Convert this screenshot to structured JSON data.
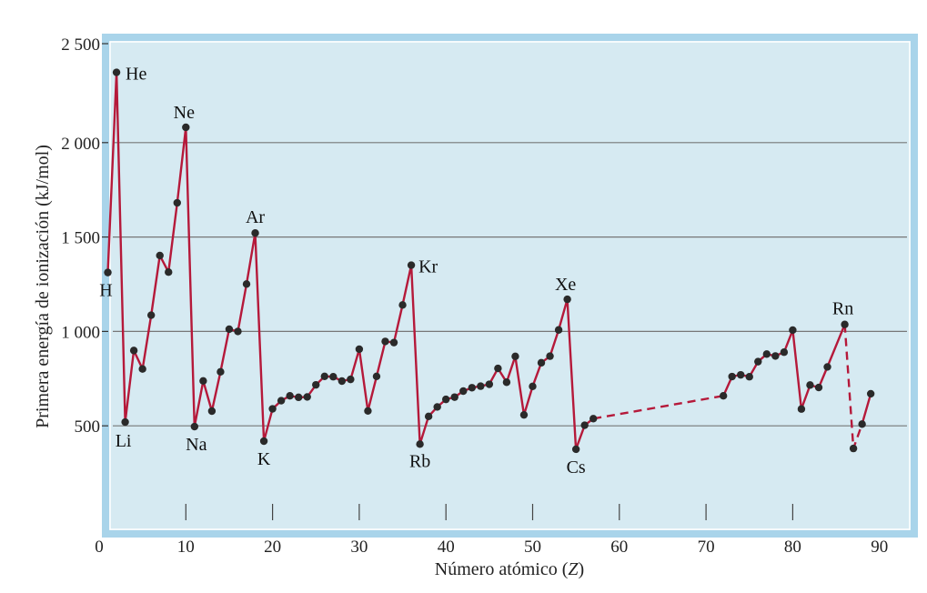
{
  "chart_data": {
    "type": "line",
    "title": "",
    "xlabel": "Número atómico (Z)",
    "xlabel_main": "Número atómico (",
    "xlabel_var": "Z",
    "xlabel_end": ")",
    "ylabel": "Primera energía de ionización (kJ/mol)",
    "xlim": [
      0,
      90
    ],
    "ylim": [
      0,
      2500
    ],
    "x_ticks": [
      0,
      10,
      20,
      30,
      40,
      50,
      60,
      70,
      80,
      90
    ],
    "x_tick_labels": [
      "0",
      "10",
      "20",
      "30",
      "40",
      "50",
      "60",
      "70",
      "80",
      "90"
    ],
    "y_ticks": [
      500,
      1000,
      1500,
      2000,
      2500
    ],
    "y_tick_labels": [
      "500",
      "1 000",
      "1 500",
      "2 000",
      "2 500"
    ],
    "grid": true,
    "colors": {
      "line": "#b5193a",
      "marker": "#2a2a2a",
      "plot_background": "#d6eaf2",
      "frame": "#a9d4ea",
      "gridline": "#777777"
    },
    "series": [
      {
        "segments": [
          {
            "style": "solid",
            "points": [
              [
                1,
                1312
              ],
              [
                2,
                2372
              ],
              [
                3,
                520
              ],
              [
                4,
                899
              ],
              [
                5,
                801
              ],
              [
                6,
                1086
              ],
              [
                7,
                1402
              ],
              [
                8,
                1314
              ],
              [
                9,
                1681
              ],
              [
                10,
                2081
              ],
              [
                11,
                496
              ],
              [
                12,
                738
              ],
              [
                13,
                578
              ],
              [
                14,
                786
              ],
              [
                15,
                1012
              ],
              [
                16,
                1000
              ],
              [
                17,
                1251
              ],
              [
                18,
                1521
              ],
              [
                19,
                419
              ],
              [
                20,
                590
              ],
              [
                21,
                633
              ],
              [
                22,
                659
              ],
              [
                23,
                651
              ],
              [
                24,
                653
              ],
              [
                25,
                717
              ],
              [
                26,
                762
              ],
              [
                27,
                760
              ],
              [
                28,
                737
              ],
              [
                29,
                746
              ],
              [
                30,
                906
              ],
              [
                31,
                579
              ],
              [
                32,
                762
              ],
              [
                33,
                947
              ],
              [
                34,
                941
              ],
              [
                35,
                1140
              ],
              [
                36,
                1351
              ],
              [
                37,
                403
              ],
              [
                38,
                550
              ],
              [
                39,
                600
              ],
              [
                40,
                640
              ],
              [
                41,
                652
              ],
              [
                42,
                684
              ],
              [
                43,
                702
              ],
              [
                44,
                710
              ],
              [
                45,
                720
              ],
              [
                46,
                804
              ],
              [
                47,
                731
              ],
              [
                48,
                868
              ],
              [
                49,
                558
              ],
              [
                50,
                709
              ],
              [
                51,
                834
              ],
              [
                52,
                869
              ],
              [
                53,
                1008
              ],
              [
                54,
                1170
              ],
              [
                55,
                376
              ],
              [
                56,
                503
              ],
              [
                57,
                538
              ]
            ]
          },
          {
            "style": "dashed",
            "points": [
              [
                57,
                538
              ],
              [
                72,
                659
              ]
            ]
          },
          {
            "style": "solid",
            "points": [
              [
                72,
                659
              ],
              [
                73,
                761
              ],
              [
                74,
                770
              ],
              [
                75,
                760
              ],
              [
                76,
                840
              ],
              [
                77,
                880
              ],
              [
                78,
                870
              ],
              [
                79,
                890
              ],
              [
                80,
                1007
              ],
              [
                81,
                589
              ],
              [
                82,
                716
              ],
              [
                83,
                703
              ],
              [
                84,
                812
              ],
              [
                86,
                1037
              ]
            ]
          },
          {
            "style": "dashed",
            "points": [
              [
                86,
                1037
              ],
              [
                87,
                380
              ],
              [
                88,
                509
              ]
            ]
          },
          {
            "style": "solid",
            "points": [
              [
                88,
                509
              ],
              [
                89,
                670
              ]
            ]
          }
        ]
      }
    ],
    "annotations": [
      {
        "text": "He",
        "x": 2,
        "y": 2372,
        "dx": 10,
        "dy": 8,
        "anchor": "start"
      },
      {
        "text": "H",
        "x": 1,
        "y": 1312,
        "dx": -2,
        "dy": 26,
        "anchor": "middle"
      },
      {
        "text": "Li",
        "x": 3,
        "y": 520,
        "dx": -2,
        "dy": 27,
        "anchor": "middle"
      },
      {
        "text": "Ne",
        "x": 10,
        "y": 2081,
        "dx": -2,
        "dy": -10,
        "anchor": "middle"
      },
      {
        "text": "Na",
        "x": 11,
        "y": 496,
        "dx": 2,
        "dy": 26,
        "anchor": "middle"
      },
      {
        "text": "Ar",
        "x": 18,
        "y": 1521,
        "dx": 0,
        "dy": -11,
        "anchor": "middle"
      },
      {
        "text": "K",
        "x": 19,
        "y": 419,
        "dx": 0,
        "dy": 26,
        "anchor": "middle"
      },
      {
        "text": "Kr",
        "x": 36,
        "y": 1351,
        "dx": 8,
        "dy": 8,
        "anchor": "start"
      },
      {
        "text": "Rb",
        "x": 37,
        "y": 403,
        "dx": 0,
        "dy": 25,
        "anchor": "middle"
      },
      {
        "text": "Xe",
        "x": 54,
        "y": 1170,
        "dx": -2,
        "dy": -10,
        "anchor": "middle"
      },
      {
        "text": "Cs",
        "x": 55,
        "y": 376,
        "dx": 0,
        "dy": 26,
        "anchor": "middle"
      },
      {
        "text": "Rn",
        "x": 86,
        "y": 1037,
        "dx": -2,
        "dy": -11,
        "anchor": "middle"
      }
    ]
  }
}
